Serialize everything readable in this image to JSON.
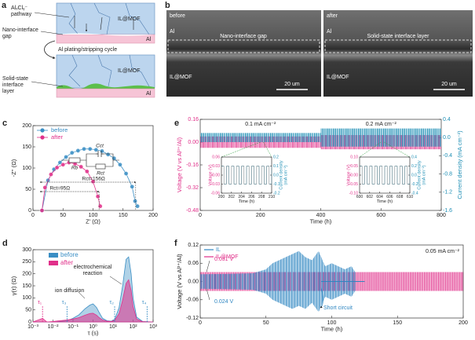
{
  "panel_labels": [
    "a",
    "b",
    "c",
    "d",
    "e",
    "f"
  ],
  "schematic": {
    "top_labels": [
      "AlₓClᵧ⁻",
      "pathway"
    ],
    "gap_label": [
      "Nano-interface",
      "gap"
    ],
    "cycle_label": "Al plating/stripping cycle",
    "layer_label": [
      "Solid-state",
      "interface",
      "layer"
    ],
    "top_mof": "IL@MOF",
    "top_al": "Al",
    "bottom_mof": "IL@MOF",
    "bottom_al": "Al"
  },
  "micrographs": [
    {
      "state": "before",
      "al": "Al",
      "interface": "Nano-interface gap",
      "mof": "IL@MOF",
      "scale": "20 um"
    },
    {
      "state": "after",
      "al": "Al",
      "interface": "Solid-state interface layer",
      "mof": "IL@MOF",
      "scale": "20 um"
    }
  ],
  "chart_data": [
    {
      "type": "nyquist",
      "xlabel": "Z' (Ω)",
      "ylabel": "-Z'' (Ω)",
      "xlim": [
        0,
        200
      ],
      "xticks": [
        0,
        50,
        100,
        150,
        200
      ],
      "ylim": [
        0,
        200
      ],
      "yticks": [
        0,
        50,
        100,
        150,
        200
      ],
      "legend": "upper left",
      "series": [
        {
          "name": "before",
          "color": "#3a8ec4",
          "x": [
            15,
            25,
            35,
            45,
            55,
            65,
            75,
            85,
            95,
            105,
            115,
            125,
            135,
            145,
            155,
            165,
            170,
            174
          ],
          "values": [
            0,
            71,
            97,
            113,
            126,
            136,
            141,
            145,
            145,
            143,
            140,
            132,
            123,
            108,
            87,
            56,
            22,
            10
          ]
        },
        {
          "name": "after",
          "color": "#e0308a",
          "x": [
            15,
            20,
            30,
            40,
            50,
            60,
            70,
            80,
            90,
            100,
            108,
            112
          ],
          "values": [
            0,
            54,
            85,
            101,
            108,
            113,
            110,
            103,
            92,
            68,
            33,
            10
          ]
        }
      ],
      "circuit": [
        "Rb",
        "Cct",
        "Rct"
      ],
      "rct_arrows": [
        {
          "text": "Rct=156Ω",
          "from": 15,
          "to": 171
        },
        {
          "text": "Rct=95Ω",
          "from": 15,
          "to": 110
        }
      ]
    },
    {
      "type": "drt",
      "xlabel": "τ (s)",
      "ylabel": "γ(τ) (Ω)",
      "xscale": "log",
      "xlim": [
        0.001,
        1000
      ],
      "xticks": [
        {
          "value": 0.001,
          "label": "10⁻³"
        },
        {
          "value": 0.01,
          "label": "10⁻²"
        },
        {
          "value": 0.1,
          "label": "10⁻¹"
        },
        {
          "value": 1,
          "label": "10⁰"
        },
        {
          "value": 10,
          "label": "10¹"
        },
        {
          "value": 100,
          "label": "10²"
        },
        {
          "value": 1000,
          "label": "10³"
        }
      ],
      "ylim": [
        0,
        300
      ],
      "yticks": [
        0,
        50,
        100,
        150,
        200,
        250,
        300
      ],
      "legend": "upper left",
      "x": [
        0.001,
        0.003,
        0.005,
        0.01,
        0.02,
        0.05,
        0.1,
        0.2,
        0.4,
        0.7,
        1,
        1.5,
        2,
        3,
        5,
        8,
        12,
        20,
        30,
        45,
        60,
        80,
        100,
        150,
        300,
        1000
      ],
      "series": [
        {
          "name": "before",
          "color": "#3a8ec4",
          "values": [
            0,
            0,
            0,
            0,
            2,
            5,
            15,
            30,
            55,
            70,
            75,
            60,
            40,
            15,
            5,
            3,
            10,
            60,
            150,
            260,
            270,
            200,
            100,
            20,
            2,
            0
          ]
        },
        {
          "name": "after",
          "color": "#e0308a",
          "values": [
            0,
            15,
            0,
            2,
            5,
            8,
            12,
            18,
            28,
            35,
            36,
            28,
            18,
            8,
            3,
            2,
            6,
            35,
            90,
            160,
            175,
            130,
            65,
            12,
            1,
            0
          ]
        }
      ],
      "annotations": [
        "electrochemical",
        "reaction",
        "ion diffusion"
      ],
      "tau_marks": [
        {
          "label": "τ₁",
          "x": 0.003,
          "color": "#e0308a"
        },
        {
          "label": "τ₃",
          "x": 0.05,
          "color": "#3a8ec4"
        },
        {
          "label": "τ₂",
          "x": 12,
          "color": "#3a8ec4"
        },
        {
          "label": "τ₄",
          "x": 500,
          "color": "#3a8ec4"
        }
      ]
    },
    {
      "type": "cycling",
      "xlabel": "Time (h)",
      "ylabel": "Voltage (V vs Al³⁺/Al)",
      "y2label": "Current density (mA cm⁻²)",
      "xlim": [
        0,
        800
      ],
      "xticks": [
        0,
        200,
        400,
        600,
        800
      ],
      "ylim": [
        -0.48,
        0.16
      ],
      "yticks": [
        -0.48,
        -0.32,
        -0.16,
        {
          "value": 0,
          "label": "0.00"
        },
        0.16
      ],
      "y2lim": [
        -1.6,
        0.4
      ],
      "y2ticks": [
        -1.6,
        -1.2,
        -0.8,
        -0.4,
        {
          "value": 0,
          "label": "0.0"
        },
        0.4
      ],
      "x": [
        0,
        400,
        400,
        800
      ],
      "series": [
        {
          "color": "#e0308a",
          "upper": [
            0.04,
            0.04,
            0.05,
            0.05
          ],
          "lower": [
            -0.04,
            -0.04,
            -0.05,
            -0.05
          ]
        },
        {
          "color": "#1f8fb5",
          "axis": "y2",
          "upper": [
            0.1,
            0.1,
            0.2,
            0.2
          ],
          "lower": [
            -0.1,
            -0.1,
            -0.2,
            -0.2
          ]
        }
      ],
      "annotations": [
        {
          "text": "0.1 mA cm⁻²",
          "x": 200
        },
        {
          "text": "0.2 mA cm⁻²",
          "x": 600
        }
      ],
      "insets": [
        {
          "xlabel": "Time (h)",
          "ylabel": "Voltage (V)",
          "y2label": [
            "Current density",
            "(mA cm⁻²)"
          ],
          "xlim": [
            200,
            210
          ],
          "xticks": [
            200,
            202,
            204,
            206,
            208,
            210
          ],
          "ylim": [
            -0.06,
            0.06
          ],
          "yticks": [
            -0.06,
            -0.03,
            {
              "value": 0,
              "label": "0.00"
            },
            0.03,
            0.06
          ],
          "y2lim": [
            -0.2,
            0.2
          ],
          "y2ticks": [
            -0.2,
            -0.1,
            {
              "value": 0,
              "label": "0.0"
            },
            0.1,
            0.2
          ],
          "voltage": 0.03,
          "current": 0.1,
          "cycle": 1
        },
        {
          "xlabel": "Time (h)",
          "ylabel": "Voltage (V)",
          "y2label": [
            "Current density",
            "(mA cm⁻²)"
          ],
          "xlim": [
            600,
            610
          ],
          "xticks": [
            600,
            602,
            604,
            606,
            608,
            610
          ],
          "ylim": [
            -0.1,
            0.1
          ],
          "yticks": [
            {
              "value": -0.1,
              "label": "-0.10"
            },
            -0.05,
            {
              "value": 0,
              "label": "0.00"
            },
            0.05,
            {
              "value": 0.1,
              "label": "0.10"
            }
          ],
          "y2lim": [
            -0.4,
            0.4
          ],
          "y2ticks": [
            -0.4,
            -0.2,
            {
              "value": 0,
              "label": "0.0"
            },
            0.2,
            0.4
          ],
          "voltage": 0.05,
          "current": 0.2,
          "cycle": 1
        }
      ]
    },
    {
      "type": "cycling-compare",
      "xlabel": "Time (h)",
      "ylabel": "Voltage (V vs Al³⁺/Al)",
      "xlim": [
        0,
        200
      ],
      "xticks": [
        0,
        50,
        100,
        150,
        200
      ],
      "ylim": [
        -0.12,
        0.12
      ],
      "yticks": [
        -0.12,
        -0.06,
        {
          "value": 0,
          "label": "0.00"
        },
        0.06,
        0.12
      ],
      "legend": "upper left",
      "series": [
        {
          "name": "IL",
          "color": "#2e86c1",
          "x": [
            0,
            20,
            40,
            50,
            55,
            60,
            65,
            70,
            75,
            80,
            85,
            90,
            95,
            100,
            105,
            110,
            115,
            118
          ],
          "upper": [
            0.024,
            0.025,
            0.027,
            0.04,
            0.06,
            0.07,
            0.08,
            0.09,
            0.1,
            0.08,
            0.07,
            0.1,
            0.05,
            0.06,
            0.05,
            0.04,
            0.05,
            0.03
          ],
          "lower": [
            -0.024,
            -0.025,
            -0.027,
            -0.04,
            -0.06,
            -0.07,
            -0.08,
            -0.09,
            -0.08,
            -0.09,
            -0.07,
            -0.1,
            -0.05,
            -0.06,
            -0.05,
            -0.04,
            -0.05,
            -0.03
          ]
        },
        {
          "name": "IL@MOF",
          "color": "#e0308a",
          "x": [
            0,
            200
          ],
          "upper": [
            0.031,
            0.031
          ],
          "lower": [
            -0.031,
            -0.031
          ]
        }
      ],
      "short_circuit": {
        "x": [
          92,
          125
        ],
        "values": [
          0,
          0
        ]
      },
      "annotations": [
        "0.05 mA cm⁻²",
        "0.031 V",
        "0.024 V",
        "Short circuit"
      ]
    }
  ]
}
